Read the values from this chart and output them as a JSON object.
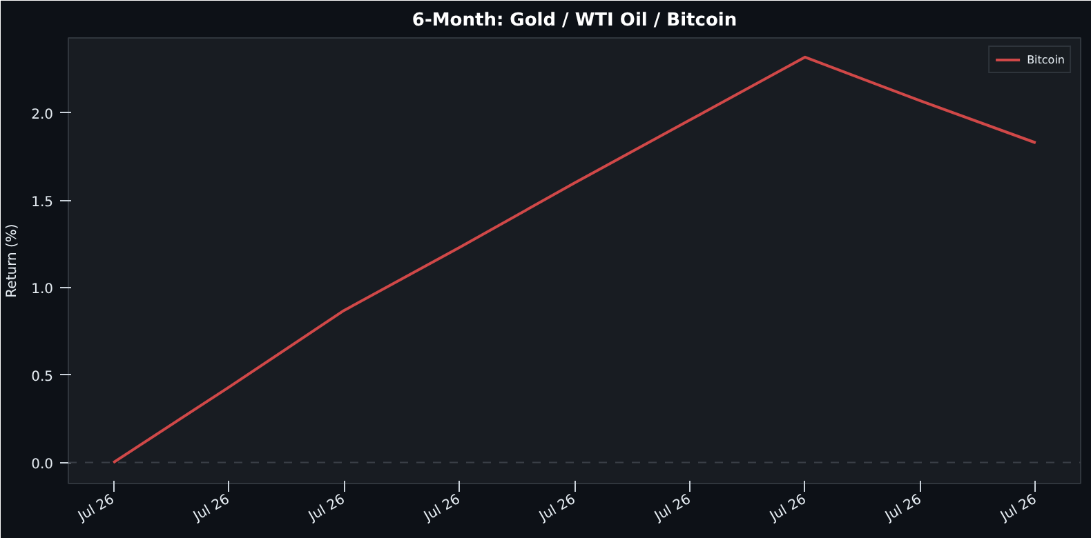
{
  "chart_data": {
    "type": "line",
    "title": "6-Month: Gold / WTI Oil / Bitcoin",
    "ylabel": "Return (%)",
    "categories": [
      "Jul 26",
      "Jul 26",
      "Jul 26",
      "Jul 26",
      "Jul 26",
      "Jul 26",
      "Jul 26",
      "Jul 26",
      "Jul 26"
    ],
    "series": [
      {
        "name": "Bitcoin",
        "color": "#d04848",
        "values": [
          0,
          0.43,
          0.87,
          1.23,
          1.6,
          1.96,
          2.32,
          2.07,
          1.83
        ]
      }
    ],
    "ylim": [
      -0.12,
      2.43
    ],
    "yticks": [
      {
        "value": 0,
        "label": "0.0"
      },
      {
        "value": 0.5,
        "label": "0.5"
      },
      {
        "value": 1,
        "label": "1.0"
      },
      {
        "value": 1.5,
        "label": "1.5"
      },
      {
        "value": 2,
        "label": "2.0"
      }
    ],
    "ref_lines": [
      {
        "axis": "y",
        "value": 0,
        "color": "#3a3f47",
        "line_style": "dashed"
      }
    ],
    "grid": false,
    "legend": "top right",
    "marker": "none",
    "line_style": "solid"
  }
}
